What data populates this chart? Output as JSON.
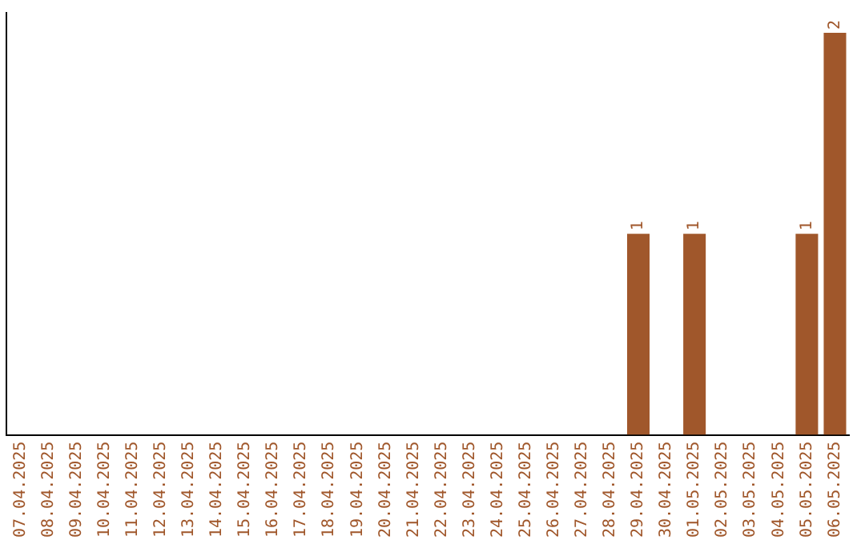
{
  "chart_data": {
    "type": "bar",
    "categories": [
      "07.04.2025",
      "08.04.2025",
      "09.04.2025",
      "10.04.2025",
      "11.04.2025",
      "12.04.2025",
      "13.04.2025",
      "14.04.2025",
      "15.04.2025",
      "16.04.2025",
      "17.04.2025",
      "18.04.2025",
      "19.04.2025",
      "20.04.2025",
      "21.04.2025",
      "22.04.2025",
      "23.04.2025",
      "24.04.2025",
      "25.04.2025",
      "26.04.2025",
      "27.04.2025",
      "28.04.2025",
      "29.04.2025",
      "30.04.2025",
      "01.05.2025",
      "02.05.2025",
      "03.05.2025",
      "04.05.2025",
      "05.05.2025",
      "06.05.2025"
    ],
    "values": [
      null,
      null,
      null,
      null,
      null,
      null,
      null,
      null,
      null,
      null,
      null,
      null,
      null,
      null,
      null,
      null,
      null,
      null,
      null,
      null,
      null,
      null,
      1,
      null,
      1,
      null,
      null,
      null,
      1,
      2
    ],
    "data_labels": true,
    "color": "#a0572b",
    "grid": false,
    "legend": false,
    "tick_labels": "x"
  }
}
